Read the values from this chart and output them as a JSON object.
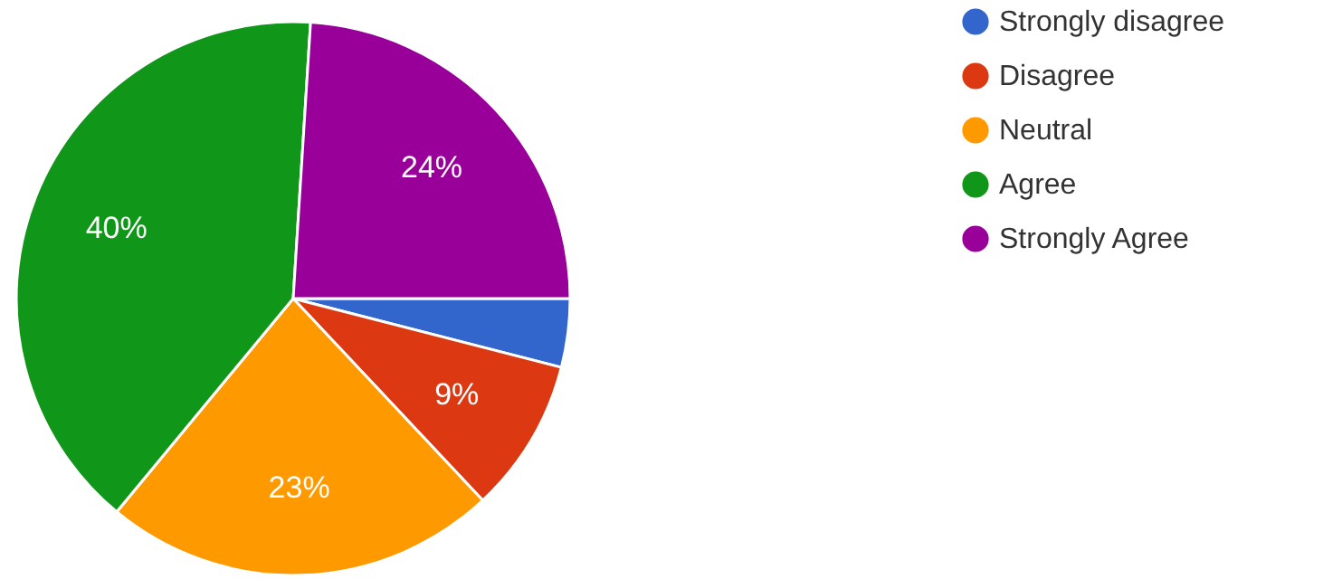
{
  "chart_data": {
    "type": "pie",
    "categories": [
      "Strongly disagree",
      "Disagree",
      "Neutral",
      "Agree",
      "Strongly Agree"
    ],
    "values": [
      4,
      9,
      23,
      40,
      24
    ],
    "colors": [
      "#3366cc",
      "#dc3912",
      "#ff9900",
      "#109618",
      "#990099"
    ],
    "value_labels": [
      null,
      "9%",
      "23%",
      "40%",
      "24%"
    ],
    "legend": "top right"
  }
}
